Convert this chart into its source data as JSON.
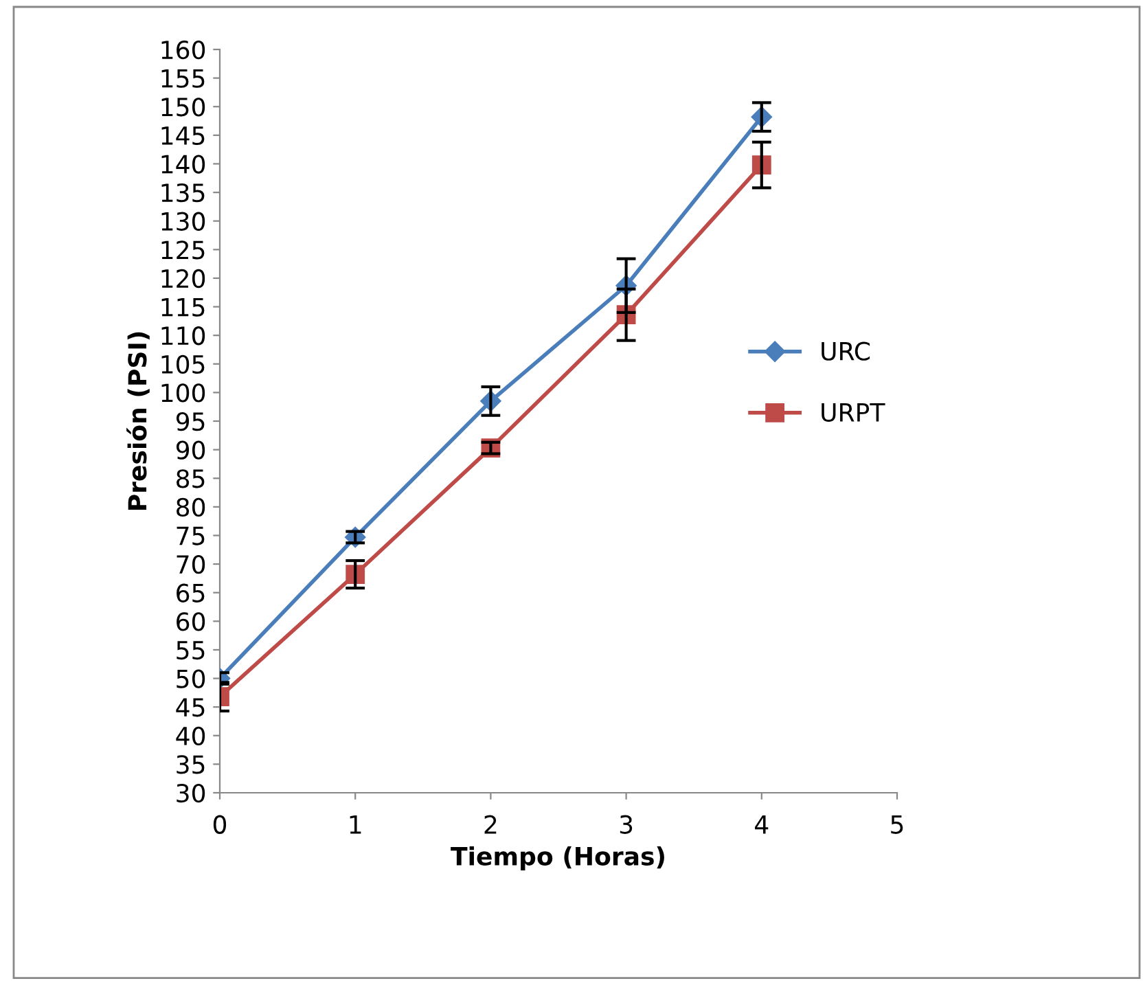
{
  "chart_data": {
    "type": "line",
    "xlabel": "Tiempo (Horas)",
    "ylabel": "Presión (PSI)",
    "x": [
      0,
      1,
      2,
      3,
      4
    ],
    "series": [
      {
        "name": "URC",
        "color": "#4a7ebb",
        "marker": "diamond",
        "values": [
          50,
          74.7,
          98.5,
          118.7,
          148.2
        ],
        "errors": [
          1,
          1,
          2.5,
          4.7,
          2.5
        ]
      },
      {
        "name": "URPT",
        "color": "#be4b48",
        "marker": "square",
        "values": [
          46.8,
          68.2,
          90.3,
          113.6,
          139.8
        ],
        "errors": [
          2.5,
          2.4,
          1,
          4.5,
          4
        ]
      }
    ],
    "xlim": [
      0,
      5
    ],
    "xticks": [
      0,
      1,
      2,
      3,
      4,
      5
    ],
    "ylim": [
      30,
      160
    ],
    "yticks": [
      30,
      35,
      40,
      45,
      50,
      55,
      60,
      65,
      70,
      75,
      80,
      85,
      90,
      95,
      100,
      105,
      110,
      115,
      120,
      125,
      130,
      135,
      140,
      145,
      150,
      155,
      160
    ],
    "grid": false,
    "legend": "right",
    "line_style": "solid"
  }
}
